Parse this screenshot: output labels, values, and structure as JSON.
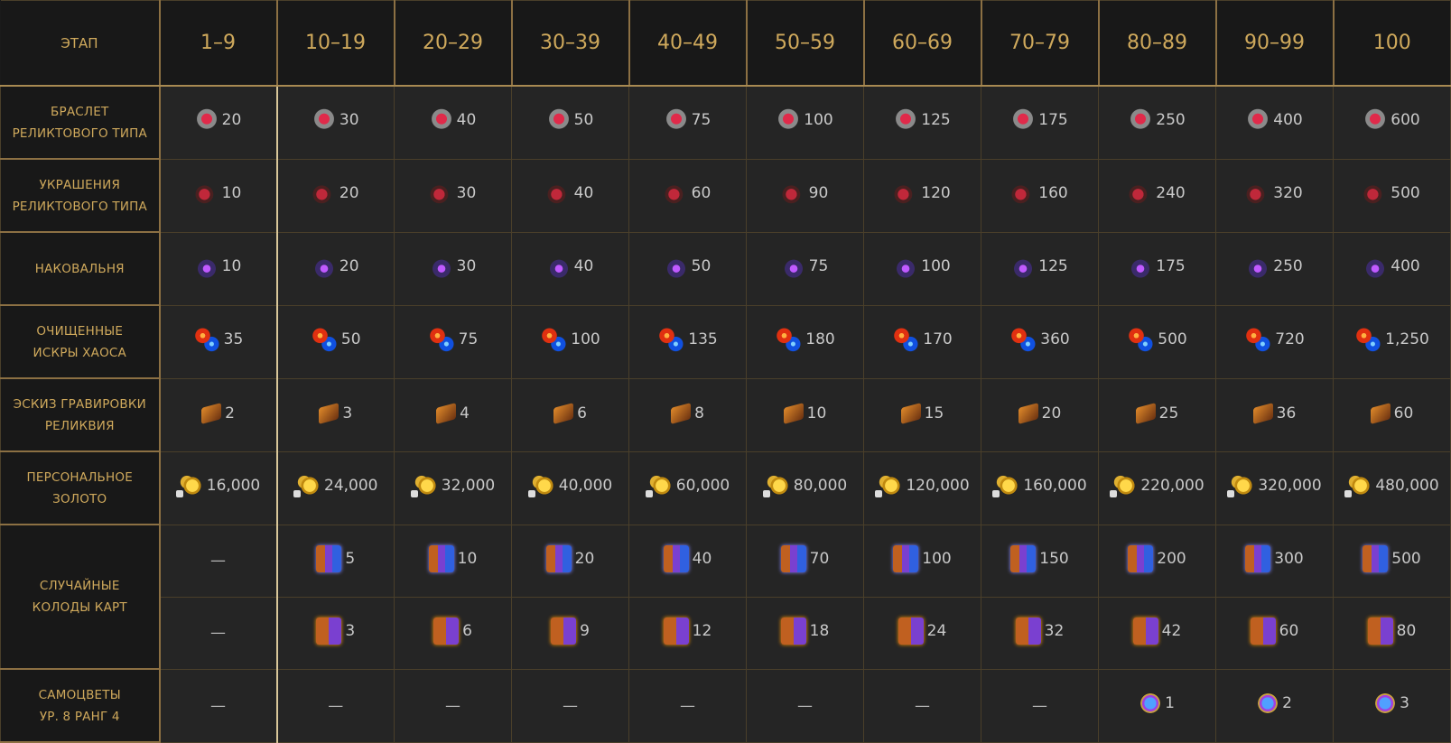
{
  "header": {
    "label": "ЭТАП",
    "stages": [
      "1–9",
      "10–19",
      "20–29",
      "30–39",
      "40–49",
      "50–59",
      "60–69",
      "70–79",
      "80–89",
      "90–99",
      "100"
    ]
  },
  "colors": {
    "gold_text": "#cfa95c",
    "cell_bg": "#252525",
    "label_bg": "#181818",
    "value_text": "#c9c9c9"
  },
  "rows": [
    {
      "label": [
        "БРАСЛЕТ",
        "РЕЛИКТОВОГО ТИПА"
      ],
      "icon": "bracelet",
      "values": [
        "20",
        "30",
        "40",
        "50",
        "75",
        "100",
        "125",
        "175",
        "250",
        "400",
        "600"
      ]
    },
    {
      "label": [
        "УКРАШЕНИЯ",
        "РЕЛИКТОВОГО ТИПА"
      ],
      "icon": "accessory",
      "values": [
        "10",
        "20",
        "30",
        "40",
        "60",
        "90",
        "120",
        "160",
        "240",
        "320",
        "500"
      ]
    },
    {
      "label": [
        "НАКОВАЛЬНЯ"
      ],
      "icon": "anvil",
      "values": [
        "10",
        "20",
        "30",
        "40",
        "50",
        "75",
        "100",
        "125",
        "175",
        "250",
        "400"
      ]
    },
    {
      "label": [
        "ОЧИЩЕННЫЕ",
        "ИСКРЫ ХАОСА"
      ],
      "icon": "chaos",
      "values": [
        "35",
        "50",
        "75",
        "100",
        "135",
        "180",
        "170",
        "360",
        "500",
        "720",
        "1,250"
      ]
    },
    {
      "label": [
        "ЭСКИЗ ГРАВИРОВКИ",
        "РЕЛИКВИЯ"
      ],
      "icon": "book",
      "values": [
        "2",
        "3",
        "4",
        "6",
        "8",
        "10",
        "15",
        "20",
        "25",
        "36",
        "60"
      ]
    },
    {
      "label": [
        "ПЕРСОНАЛЬНОЕ",
        "ЗОЛОТО"
      ],
      "icon": "gold",
      "values": [
        "16,000",
        "24,000",
        "32,000",
        "40,000",
        "60,000",
        "80,000",
        "120,000",
        "160,000",
        "220,000",
        "320,000",
        "480,000"
      ]
    },
    {
      "label": [
        "СЛУЧАЙНЫЕ",
        "КОЛОДЫ КАРТ"
      ],
      "subrows": [
        {
          "icon": "deck",
          "values": [
            "—",
            "5",
            "10",
            "20",
            "40",
            "70",
            "100",
            "150",
            "200",
            "300",
            "500"
          ]
        },
        {
          "icon": "deck2",
          "values": [
            "—",
            "3",
            "6",
            "9",
            "12",
            "18",
            "24",
            "32",
            "42",
            "60",
            "80"
          ]
        }
      ]
    },
    {
      "label": [
        "САМОЦВЕТЫ",
        "УР. 8 РАНГ 4"
      ],
      "icon": "gem",
      "values": [
        "—",
        "—",
        "—",
        "—",
        "—",
        "—",
        "—",
        "—",
        "1",
        "2",
        "3"
      ]
    }
  ]
}
